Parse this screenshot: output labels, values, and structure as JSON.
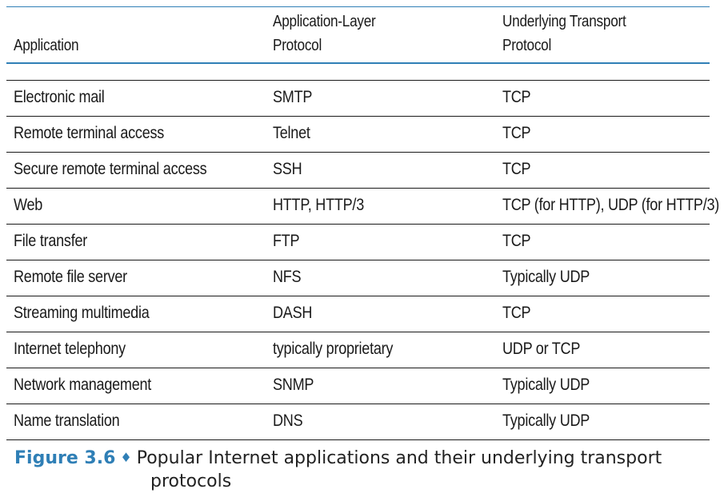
{
  "table": {
    "headers": {
      "application": "Application",
      "app_protocol_line1": "Application-Layer",
      "app_protocol_line2": "Protocol",
      "transport_line1": "Underlying Transport",
      "transport_line2": "Protocol"
    },
    "rows": [
      {
        "application": "Electronic mail",
        "protocol": "SMTP",
        "transport": "TCP"
      },
      {
        "application": "Remote terminal access",
        "protocol": "Telnet",
        "transport": "TCP"
      },
      {
        "application": "Secure remote terminal access",
        "protocol": "SSH",
        "transport": "TCP"
      },
      {
        "application": "Web",
        "protocol": "HTTP, HTTP/3",
        "transport": "TCP (for HTTP), UDP (for HTTP/3)"
      },
      {
        "application": "File transfer",
        "protocol": "FTP",
        "transport": "TCP"
      },
      {
        "application": "Remote file server",
        "protocol": "NFS",
        "transport": "Typically UDP"
      },
      {
        "application": "Streaming multimedia",
        "protocol": "DASH",
        "transport": "TCP"
      },
      {
        "application": "Internet telephony",
        "protocol": "typically proprietary",
        "transport": "UDP or TCP"
      },
      {
        "application": "Network management",
        "protocol": "SNMP",
        "transport": "Typically UDP"
      },
      {
        "application": "Name translation",
        "protocol": "DNS",
        "transport": "Typically UDP"
      }
    ]
  },
  "caption": {
    "figure_label": "Figure 3.6",
    "separator": "♦",
    "text_line1": "Popular Internet applications and their underlying transport",
    "text_line2": "protocols"
  },
  "colors": {
    "accent": "#2f7fb6",
    "rule": "#1a1a1a"
  }
}
